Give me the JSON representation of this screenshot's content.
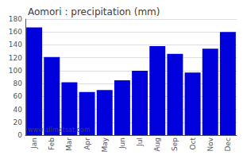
{
  "chart_data": {
    "type": "bar",
    "title": "Aomori : precipitation (mm)",
    "categories": [
      "Jan",
      "Feb",
      "Mar",
      "Apr",
      "May",
      "Jun",
      "Jul",
      "Aug",
      "Sep",
      "Oct",
      "Nov",
      "Dec"
    ],
    "values": [
      167,
      121,
      82,
      67,
      70,
      85,
      100,
      138,
      126,
      97,
      134,
      160
    ],
    "color": "#0000dd",
    "ylim": [
      0,
      180
    ],
    "yticks": [
      0,
      20,
      40,
      60,
      80,
      100,
      120,
      140,
      160,
      180
    ],
    "grid": true,
    "annotations": [
      "www.allmetsat.com"
    ]
  }
}
